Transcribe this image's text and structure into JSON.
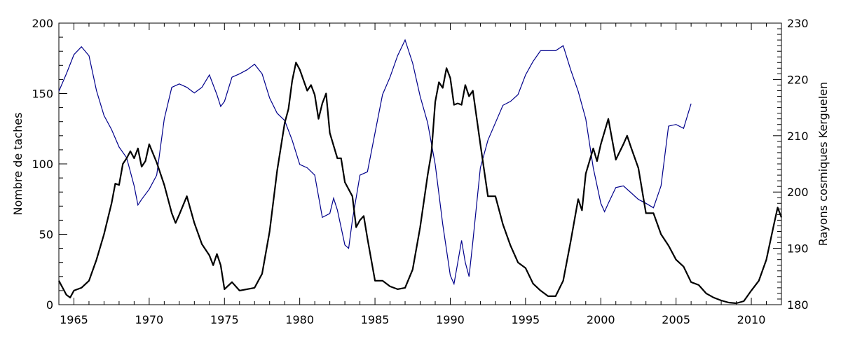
{
  "chart_data": {
    "type": "line",
    "title": "",
    "xlabel": "",
    "ylabel": "Nombre de taches",
    "y2label": "Rayons cosmiques Kerguelen",
    "xlim": [
      1964,
      2012
    ],
    "ylim": [
      0,
      200
    ],
    "y2lim": [
      180,
      230
    ],
    "xticks": [
      "1965",
      "1970",
      "1975",
      "1980",
      "1985",
      "1990",
      "1995",
      "2000",
      "2005",
      "2010"
    ],
    "yticks": [
      "0",
      "50",
      "100",
      "150",
      "200"
    ],
    "y2ticks": [
      "180",
      "190",
      "200",
      "210",
      "220",
      "230"
    ],
    "grid": false,
    "colors": {
      "sunspots": "#000000",
      "cosmic": "#00008b"
    },
    "series": [
      {
        "name": "Nombre de taches",
        "axis": "left",
        "x": [
          1964,
          1964.5,
          1964.75,
          1965,
          1965.5,
          1966,
          1966.5,
          1967,
          1967.5,
          1967.75,
          1968,
          1968.25,
          1968.5,
          1968.75,
          1969,
          1969.25,
          1969.5,
          1969.75,
          1970,
          1970.5,
          1971,
          1971.5,
          1971.75,
          1972,
          1972.5,
          1973,
          1973.5,
          1974,
          1974.25,
          1974.5,
          1974.75,
          1975,
          1975.5,
          1976,
          1976.5,
          1977,
          1977.5,
          1978,
          1978.5,
          1979,
          1979.25,
          1979.5,
          1979.75,
          1980,
          1980.5,
          1980.75,
          1981,
          1981.25,
          1981.5,
          1981.75,
          1982,
          1982.5,
          1982.75,
          1983,
          1983.5,
          1983.75,
          1984,
          1984.25,
          1984.5,
          1985,
          1985.5,
          1986,
          1986.5,
          1987,
          1987.5,
          1988,
          1988.5,
          1988.75,
          1989,
          1989.25,
          1989.5,
          1989.75,
          1990,
          1990.25,
          1990.5,
          1990.75,
          1991,
          1991.25,
          1991.5,
          1992,
          1992.5,
          1993,
          1993.5,
          1994,
          1994.5,
          1995,
          1995.5,
          1996,
          1996.5,
          1997,
          1997.5,
          1998,
          1998.5,
          1998.75,
          1999,
          1999.5,
          1999.75,
          2000,
          2000.5,
          2001,
          2001.5,
          2001.75,
          2002,
          2002.5,
          2003,
          2003.5,
          2004,
          2004.5,
          2005,
          2005.5,
          2006,
          2006.5,
          2007,
          2007.5,
          2008,
          2008.5,
          2009,
          2009.5,
          2010,
          2010.5,
          2011,
          2011.5,
          2011.75,
          2012
        ],
        "y": [
          17,
          7,
          5,
          10,
          12,
          17,
          32,
          50,
          72,
          86,
          85,
          100,
          104,
          109,
          104,
          111,
          98,
          102,
          114,
          101,
          85,
          65,
          58,
          64,
          77,
          58,
          43,
          35,
          28,
          36,
          28,
          11,
          16,
          10,
          11,
          12,
          22,
          52,
          95,
          129,
          139,
          159,
          172,
          167,
          152,
          156,
          149,
          132,
          143,
          150,
          122,
          104,
          104,
          87,
          77,
          55,
          60,
          63,
          47,
          17,
          17,
          13,
          11,
          12,
          25,
          55,
          92,
          108,
          144,
          158,
          154,
          168,
          161,
          142,
          143,
          142,
          156,
          148,
          152,
          114,
          77,
          77,
          57,
          42,
          30,
          26,
          15,
          10,
          6,
          6,
          17,
          45,
          75,
          67,
          93,
          111,
          102,
          114,
          132,
          103,
          114,
          120,
          112,
          97,
          65,
          65,
          50,
          42,
          32,
          27,
          16,
          14,
          8,
          5,
          3,
          1.5,
          1,
          2.5,
          10,
          17,
          32,
          57,
          69,
          62
        ]
      },
      {
        "name": "Rayons cosmiques Kerguelen",
        "axis": "right",
        "x": [
          1964,
          1964.5,
          1965,
          1965.5,
          1966,
          1966.5,
          1967,
          1967.5,
          1968,
          1968.5,
          1969,
          1969.25,
          1969.5,
          1970,
          1970.5,
          1971,
          1971.5,
          1972,
          1972.5,
          1973,
          1973.5,
          1974,
          1974.5,
          1974.75,
          1975,
          1975.5,
          1976,
          1976.5,
          1977,
          1977.5,
          1978,
          1978.5,
          1979,
          1979.5,
          1980,
          1980.5,
          1981,
          1981.5,
          1982,
          1982.25,
          1982.5,
          1983,
          1983.25,
          1983.5,
          1984,
          1984.5,
          1985,
          1985.5,
          1986,
          1986.5,
          1987,
          1987.5,
          1988,
          1988.5,
          1989,
          1989.5,
          1990,
          1990.25,
          1990.5,
          1990.75,
          1991,
          1991.25,
          1991.5,
          1992,
          1992.5,
          1993,
          1993.5,
          1994,
          1994.5,
          1995,
          1995.5,
          1996,
          1996.5,
          1997,
          1997.5,
          1998,
          1998.5,
          1999,
          1999.5,
          2000,
          2000.25,
          2000.5,
          2001,
          2001.5,
          2002,
          2002.5,
          2003,
          2003.5,
          2004,
          2004.5,
          2005,
          2005.5,
          2006
        ],
        "y": [
          217.9,
          221,
          224.4,
          225.8,
          224.2,
          218,
          213.6,
          211.1,
          208,
          206.1,
          201.1,
          197.7,
          198.7,
          200.5,
          203,
          213,
          218.6,
          219.2,
          218.6,
          217.6,
          218.6,
          220.8,
          217.3,
          215.2,
          216.1,
          220.4,
          221,
          221.7,
          222.7,
          221,
          216.7,
          214,
          212.7,
          209.2,
          204.9,
          204.3,
          203,
          195.5,
          196.2,
          198.9,
          196.8,
          190.6,
          190,
          195,
          203,
          203.6,
          210.5,
          217.3,
          220.4,
          224.2,
          227,
          222.9,
          217,
          212.3,
          204.9,
          194.3,
          185.2,
          183.7,
          187.5,
          191.4,
          187.5,
          185,
          191.2,
          204.3,
          209.2,
          212.3,
          215.4,
          216.1,
          217.3,
          220.8,
          223.2,
          225.1,
          225.1,
          225.1,
          226,
          221.7,
          217.9,
          213,
          204.3,
          198,
          196.5,
          198,
          200.8,
          201.1,
          199.9,
          198.7,
          198,
          197.2,
          201.1,
          211.7,
          212,
          211.3,
          215.7
        ]
      }
    ]
  }
}
